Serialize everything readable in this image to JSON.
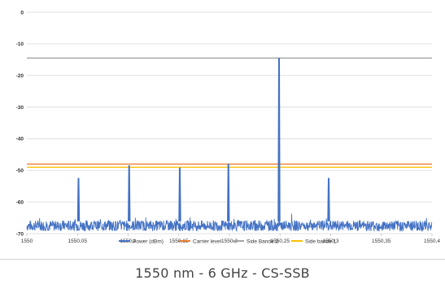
{
  "caption": "1550 nm - 6 GHz - CS-SSB",
  "colors": {
    "power": "#4472C4",
    "carrier": "#ED7D31",
    "side2": "#A5A5A5",
    "side1": "#FFC000",
    "grid": "#d9d9d9"
  },
  "chart_data": {
    "type": "line",
    "title": "",
    "xlabel": "",
    "ylabel": "",
    "xlim": [
      1550,
      1550.4
    ],
    "ylim": [
      -70,
      0
    ],
    "grid": true,
    "legend_position": "bottom",
    "x_ticks": [
      "1550",
      "1550,05",
      "1550,1",
      "1550,15",
      "1550,2",
      "1550,25",
      "1550,3",
      "1550,35",
      "1550,4"
    ],
    "y_ticks": [
      "0",
      "-10",
      "-20",
      "-30",
      "-40",
      "-50",
      "-60",
      "-70"
    ],
    "noise_floor_dbm": -67.5,
    "series": [
      {
        "name": "Power (dBm)",
        "peaks": [
          {
            "x": 1550.051,
            "y": -52.5
          },
          {
            "x": 1550.101,
            "y": -48.5
          },
          {
            "x": 1550.151,
            "y": -49.2
          },
          {
            "x": 1550.199,
            "y": -48.0
          },
          {
            "x": 1550.249,
            "y": -14.5
          },
          {
            "x": 1550.298,
            "y": -52.5
          }
        ]
      },
      {
        "name": "Carrier level",
        "y": -48.0
      },
      {
        "name": "Side Bande 2",
        "y": -14.5
      },
      {
        "name": "Side bande 1",
        "y": -49.0
      }
    ]
  }
}
